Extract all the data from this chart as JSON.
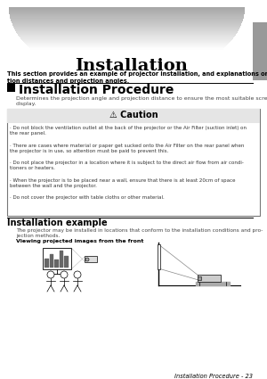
{
  "title": "Installation",
  "subtitle": "This section provides an example of projector installation, and explanations on the projec-\ntion distances and projection angles.",
  "section_title": "Installation Procedure",
  "section_body": "Determines the projection angle and projection distance to ensure the most suitable screen\ndisplay.",
  "caution_title": "⚠ Caution",
  "caution_bullets": [
    "Do not block the ventilation outlet at the back of the projector or the Air Filter (suction inlet) on\nthe rear panel.",
    "There are cases where material or paper get sucked onto the Air Filter on the rear panel when\nthe projector is in use, so attention must be paid to prevent this.",
    "Do not place the projector in a location where it is subject to the direct air flow from air condi-\ntioners or heaters.",
    "When the projector is to be placed near a wall, ensure that there is at least 20cm of space\nbetween the wall and the projector.",
    "Do not cover the projector with table cloths or other material."
  ],
  "example_title": "Installation example",
  "example_body": "The projector may be installed in locations that conform to the installation conditions and pro-\njection methods.",
  "viewing_label": "Viewing projected images from the front",
  "footer": "Installation Procedure - 23",
  "bg_color": "#ffffff",
  "tab_color": "#999999",
  "text_color": "#000000"
}
